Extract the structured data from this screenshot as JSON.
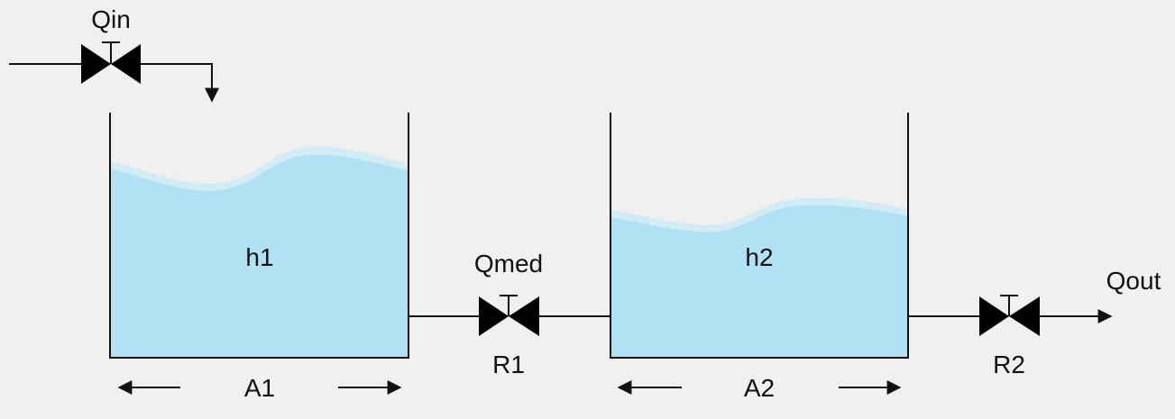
{
  "colors": {
    "background": "#f0f0f0",
    "water": "#b0e2f4",
    "water_surface": "#d2ecf6",
    "line": "#111111",
    "valve": "#000000"
  },
  "inlet": {
    "flow_label": "Qin"
  },
  "tank1": {
    "level_label": "h1",
    "area_label": "A1"
  },
  "connection": {
    "flow_label": "Qmed",
    "resistance_label": "R1"
  },
  "tank2": {
    "level_label": "h2",
    "area_label": "A2"
  },
  "outlet": {
    "flow_label": "Qout",
    "resistance_label": "R2"
  }
}
